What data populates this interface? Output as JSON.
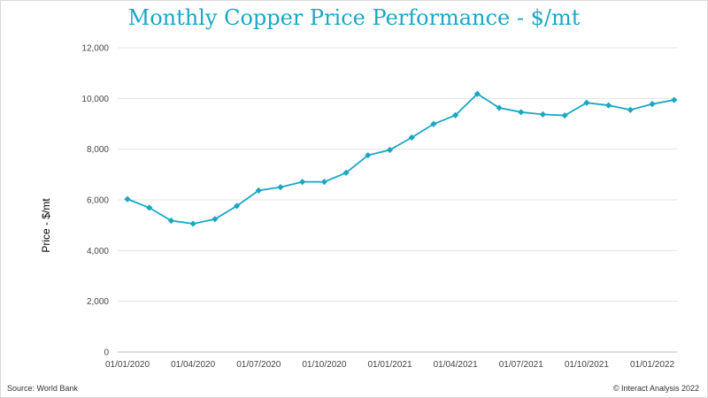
{
  "chart_data": {
    "type": "line",
    "title": "Monthly Copper Price Performance - $/mt",
    "ylabel": "Price - $/mt",
    "xlabel": "",
    "ylim": [
      0,
      12000
    ],
    "yticks": [
      "0",
      "2,000",
      "4,000",
      "6,000",
      "8,000",
      "10,000",
      "12,000"
    ],
    "ytick_values": [
      0,
      2000,
      4000,
      6000,
      8000,
      10000,
      12000
    ],
    "xticks": [
      "01/01/2020",
      "01/04/2020",
      "01/07/2020",
      "01/10/2020",
      "01/01/2021",
      "01/04/2021",
      "01/07/2021",
      "01/10/2021",
      "01/01/2022"
    ],
    "xtick_months": [
      0,
      3,
      6,
      9,
      12,
      15,
      18,
      21,
      24
    ],
    "grid": true,
    "line_color": "#1aa7c4",
    "series": [
      {
        "x": [
          "01/01/2020",
          "01/02/2020",
          "01/03/2020",
          "01/04/2020",
          "01/05/2020",
          "01/06/2020",
          "01/07/2020",
          "01/08/2020",
          "01/09/2020",
          "01/10/2020",
          "01/11/2020",
          "01/12/2020",
          "01/01/2021",
          "01/02/2021",
          "01/03/2021",
          "01/04/2021",
          "01/05/2021",
          "01/06/2021",
          "01/07/2021",
          "01/08/2021",
          "01/09/2021",
          "01/10/2021",
          "01/11/2021",
          "01/12/2021",
          "01/01/2022",
          "01/02/2022"
        ],
        "values": [
          6030,
          5690,
          5180,
          5060,
          5240,
          5760,
          6370,
          6500,
          6710,
          6710,
          7070,
          7760,
          7970,
          8460,
          8990,
          9340,
          10180,
          9630,
          9460,
          9370,
          9330,
          9830,
          9730,
          9550,
          9780,
          9940
        ]
      }
    ]
  },
  "footer": {
    "source": "Source: World Bank",
    "credit": "© Interact Analysis 2022"
  }
}
